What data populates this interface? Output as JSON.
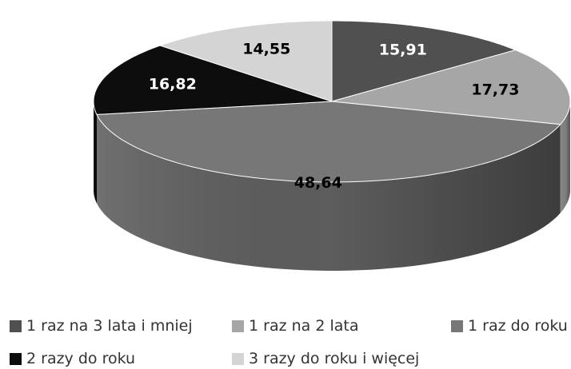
{
  "chart_data": {
    "type": "pie",
    "style": "3d",
    "title": "",
    "legend_position": "bottom",
    "categories": [
      "1 raz na 3 lata i mniej",
      "1 raz na 2 lata",
      "1 raz do roku",
      "2 razy do roku",
      "3 razy do roku i więcej"
    ],
    "values": [
      15.91,
      17.73,
      48.64,
      16.82,
      14.55
    ],
    "labels": [
      "15,91",
      "17,73",
      "48,64",
      "16,82",
      "14,55"
    ],
    "colors": [
      "#505050",
      "#a6a6a6",
      "#777777",
      "#0d0d0d",
      "#d4d4d4"
    ],
    "label_colors": [
      "#ffffff",
      "#000000",
      "#000000",
      "#ffffff",
      "#000000"
    ]
  }
}
